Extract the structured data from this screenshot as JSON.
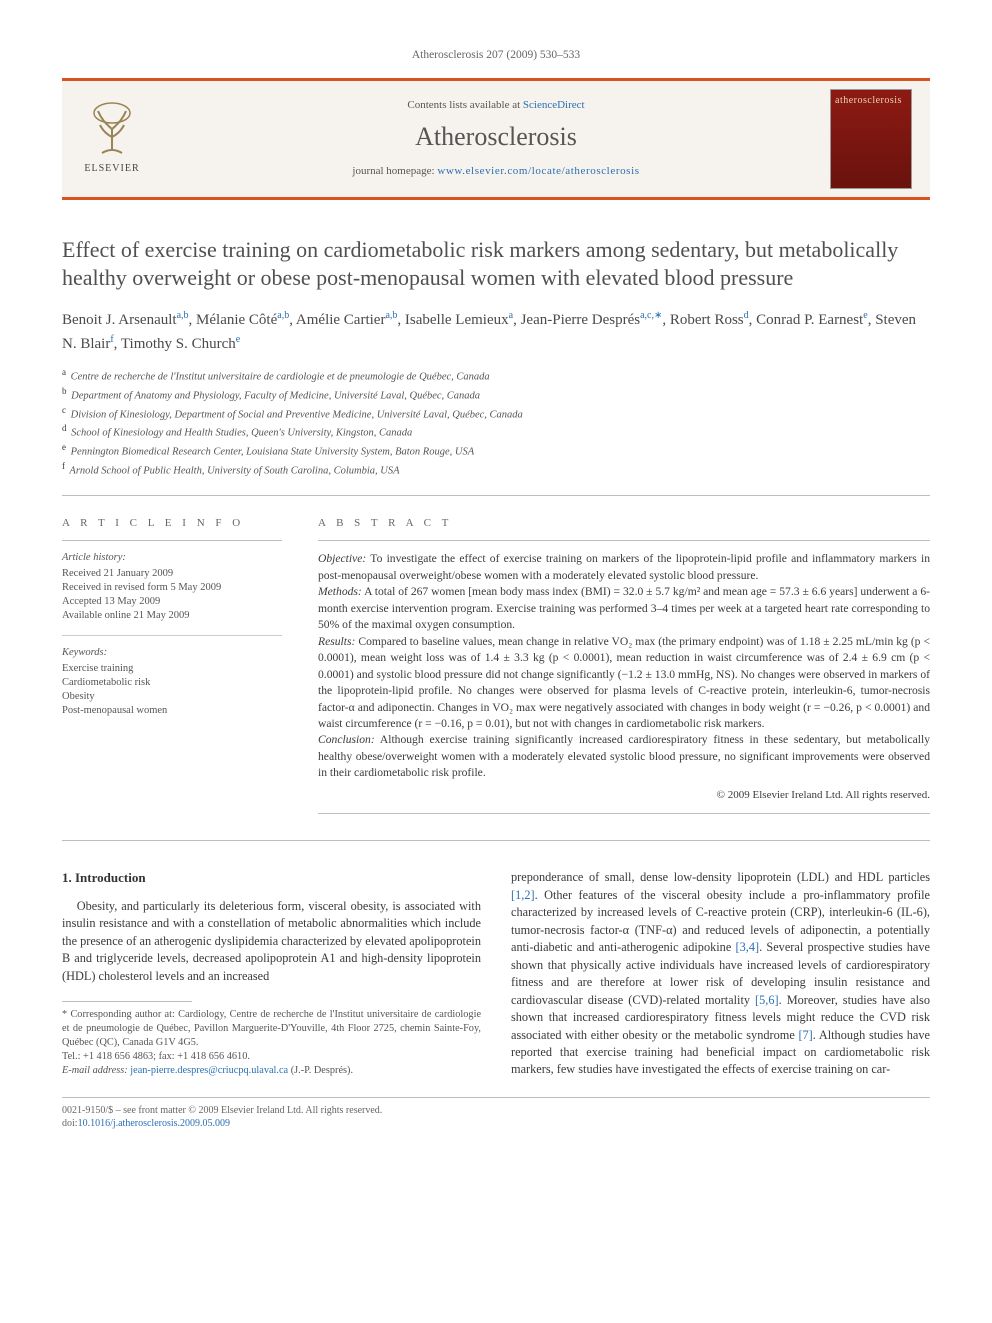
{
  "running_head": "Atherosclerosis 207 (2009) 530–533",
  "masthead": {
    "contents_prefix": "Contents lists available at ",
    "contents_link": "ScienceDirect",
    "journal": "Atherosclerosis",
    "homepage_prefix": "journal homepage: ",
    "homepage_link": "www.elsevier.com/locate/atherosclerosis",
    "publisher": "ELSEVIER",
    "cover_word": "atherosclerosis"
  },
  "title": "Effect of exercise training on cardiometabolic risk markers among sedentary, but metabolically healthy overweight or obese post-menopausal women with elevated blood pressure",
  "authors_html": "Benoit J. Arsenault|a,b|, Mélanie Côté|a,b|, Amélie Cartier|a,b|, Isabelle Lemieux|a|, Jean-Pierre Després|a,c,*|, Robert Ross|d|, Conrad P. Earnest|e|, Steven N. Blair|f|, Timothy S. Church|e|",
  "affiliations": [
    {
      "key": "a",
      "text": "Centre de recherche de l'Institut universitaire de cardiologie et de pneumologie de Québec, Canada"
    },
    {
      "key": "b",
      "text": "Department of Anatomy and Physiology, Faculty of Medicine, Université Laval, Québec, Canada"
    },
    {
      "key": "c",
      "text": "Division of Kinesiology, Department of Social and Preventive Medicine, Université Laval, Québec, Canada"
    },
    {
      "key": "d",
      "text": "School of Kinesiology and Health Studies, Queen's University, Kingston, Canada"
    },
    {
      "key": "e",
      "text": "Pennington Biomedical Research Center, Louisiana State University System, Baton Rouge, USA"
    },
    {
      "key": "f",
      "text": "Arnold School of Public Health, University of South Carolina, Columbia, USA"
    }
  ],
  "article_info": {
    "heading": "A R T I C L E   I N F O",
    "history_head": "Article history:",
    "history": [
      "Received 21 January 2009",
      "Received in revised form 5 May 2009",
      "Accepted 13 May 2009",
      "Available online 21 May 2009"
    ],
    "keywords_head": "Keywords:",
    "keywords": [
      "Exercise training",
      "Cardiometabolic risk",
      "Obesity",
      "Post-menopausal women"
    ]
  },
  "abstract": {
    "heading": "A B S T R A C T",
    "objective_label": "Objective:",
    "objective": " To investigate the effect of exercise training on markers of the lipoprotein-lipid profile and inflammatory markers in post-menopausal overweight/obese women with a moderately elevated systolic blood pressure.",
    "methods_label": "Methods:",
    "methods": " A total of 267 women [mean body mass index (BMI) = 32.0 ± 5.7 kg/m² and mean age = 57.3 ± 6.6 years] underwent a 6-month exercise intervention program. Exercise training was performed 3–4 times per week at a targeted heart rate corresponding to 50% of the maximal oxygen consumption.",
    "results_label": "Results:",
    "results": " Compared to baseline values, mean change in relative VO₂ max (the primary endpoint) was of 1.18 ± 2.25 mL/min kg (p < 0.0001), mean weight loss was of 1.4 ± 3.3 kg (p < 0.0001), mean reduction in waist circumference was of 2.4 ± 6.9 cm (p < 0.0001) and systolic blood pressure did not change significantly (−1.2 ± 13.0 mmHg, NS). No changes were observed in markers of the lipoprotein-lipid profile. No changes were observed for plasma levels of C-reactive protein, interleukin-6, tumor-necrosis factor-α and adiponectin. Changes in VO₂ max were negatively associated with changes in body weight (r = −0.26, p < 0.0001) and waist circumference (r = −0.16, p = 0.01), but not with changes in cardiometabolic risk markers.",
    "conclusion_label": "Conclusion:",
    "conclusion": " Although exercise training significantly increased cardiorespiratory fitness in these sedentary, but metabolically healthy obese/overweight women with a moderately elevated systolic blood pressure, no significant improvements were observed in their cardiometabolic risk profile.",
    "copyright": "© 2009 Elsevier Ireland Ltd. All rights reserved."
  },
  "body": {
    "section_number": "1.",
    "section_title": "Introduction",
    "col1": "Obesity, and particularly its deleterious form, visceral obesity, is associated with insulin resistance and with a constellation of metabolic abnormalities which include the presence of an atherogenic dyslipidemia characterized by elevated apolipoprotein B and triglyceride levels, decreased apolipoprotein A1 and high-density lipoprotein (HDL) cholesterol levels and an increased",
    "col2_a": "preponderance of small, dense low-density lipoprotein (LDL) and HDL particles ",
    "ref12": "[1,2]",
    "col2_b": ". Other features of the visceral obesity include a pro-inflammatory profile characterized by increased levels of C-reactive protein (CRP), interleukin-6 (IL-6), tumor-necrosis factor-α (TNF-α) and reduced levels of adiponectin, a potentially anti-diabetic and anti-atherogenic adipokine ",
    "ref34": "[3,4]",
    "col2_c": ". Several prospective studies have shown that physically active individuals have increased levels of cardiorespiratory fitness and are therefore at lower risk of developing insulin resistance and cardiovascular disease (CVD)-related mortality ",
    "ref56": "[5,6]",
    "col2_d": ". Moreover, studies have also shown that increased cardiorespiratory fitness levels might reduce the CVD risk associated with either obesity or the metabolic syndrome ",
    "ref7": "[7]",
    "col2_e": ". Although studies have reported that exercise training had beneficial impact on cardiometabolic risk markers, few studies have investigated the effects of exercise training on car-"
  },
  "footnotes": {
    "corr_label": "* Corresponding author at:",
    "corr_text": " Cardiology, Centre de recherche de l'Institut universitaire de cardiologie et de pneumologie de Québec, Pavillon Marguerite-D'Youville, 4th Floor 2725, chemin Sainte-Foy, Québec (QC), Canada G1V 4G5.",
    "tel": "Tel.: +1 418 656 4863; fax: +1 418 656 4610.",
    "email_label": "E-mail address: ",
    "email": "jean-pierre.despres@criucpq.ulaval.ca",
    "email_who": " (J.-P. Després)."
  },
  "footer": {
    "left1": "0021-9150/$ – see front matter © 2009 Elsevier Ireland Ltd. All rights reserved.",
    "left2_prefix": "doi:",
    "doi": "10.1016/j.atherosclerosis.2009.05.009"
  },
  "colors": {
    "accent": "#d8531f",
    "link": "#2a6fb3",
    "text": "#3a3a3a",
    "muted": "#666666"
  }
}
